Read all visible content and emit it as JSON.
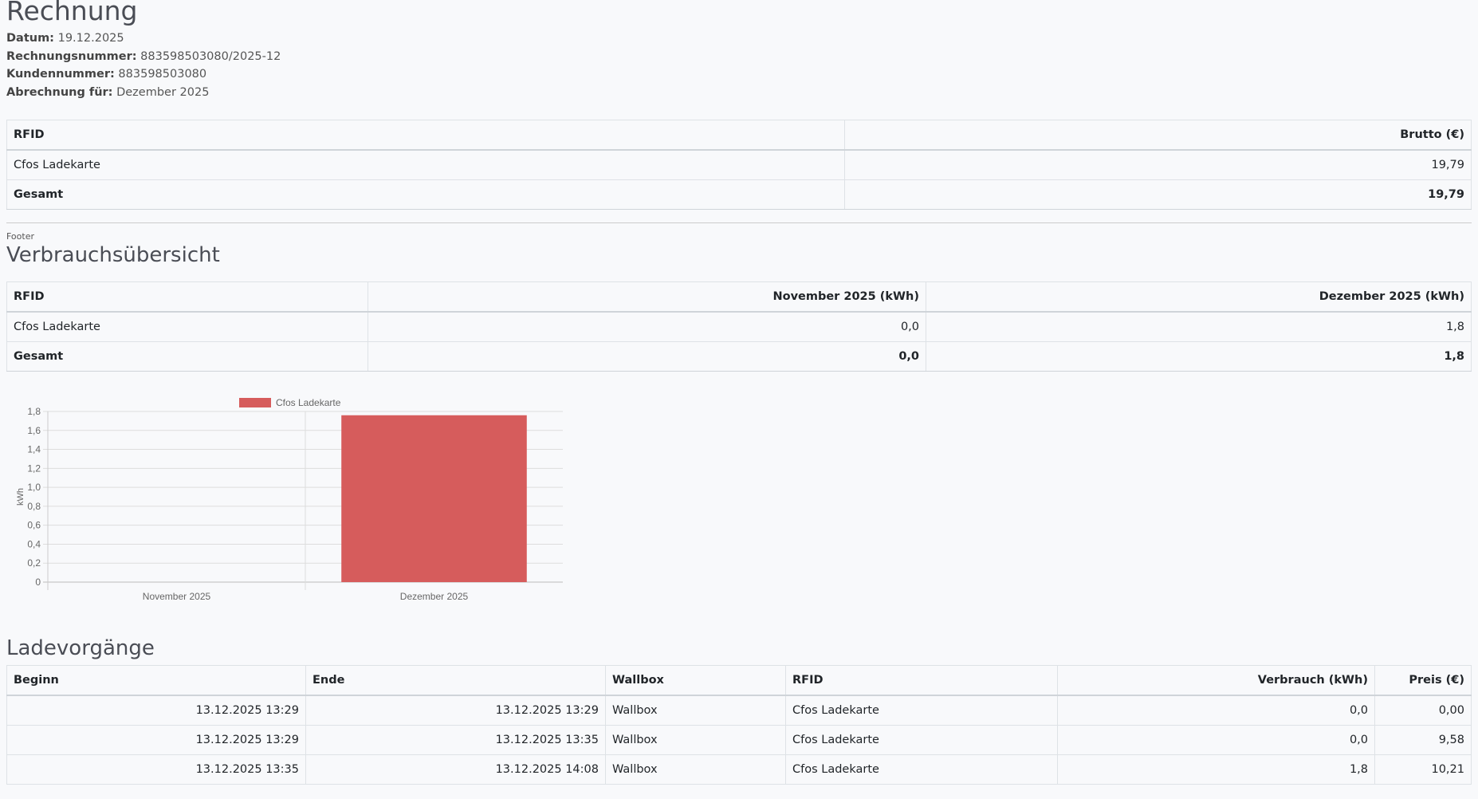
{
  "invoice": {
    "title": "Rechnung",
    "fields": [
      {
        "label": "Datum:",
        "value": "19.12.2025"
      },
      {
        "label": "Rechnungsnummer:",
        "value": "883598503080/2025-12"
      },
      {
        "label": "Kundennummer:",
        "value": "883598503080"
      },
      {
        "label": "Abrechnung für:",
        "value": "Dezember 2025"
      }
    ]
  },
  "summary": {
    "headers": [
      "RFID",
      "Brutto (€)"
    ],
    "rows": [
      [
        "Cfos Ladekarte",
        "19,79"
      ]
    ],
    "total": [
      "Gesamt",
      "19,79"
    ]
  },
  "footer_label": "Footer",
  "usage": {
    "title": "Verbrauchsübersicht",
    "headers": [
      "RFID",
      "November 2025 (kWh)",
      "Dezember 2025 (kWh)"
    ],
    "rows": [
      [
        "Cfos Ladekarte",
        "0,0",
        "1,8"
      ]
    ],
    "total": [
      "Gesamt",
      "0,0",
      "1,8"
    ]
  },
  "chart_data": {
    "type": "bar",
    "categories": [
      "November 2025",
      "Dezember 2025"
    ],
    "series": [
      {
        "name": "Cfos Ladekarte",
        "values": [
          0,
          1.76
        ],
        "color": "#d65c5c"
      }
    ],
    "ylabel": "kWh",
    "ylim": [
      0,
      1.8
    ],
    "yticks": [
      "0",
      "0,2",
      "0,4",
      "0,6",
      "0,8",
      "1,0",
      "1,2",
      "1,4",
      "1,6",
      "1,8"
    ],
    "grid": true,
    "legend": "top"
  },
  "sessions": {
    "title": "Ladevorgänge",
    "headers": [
      "Beginn",
      "Ende",
      "Wallbox",
      "RFID",
      "Verbrauch (kWh)",
      "Preis (€)"
    ],
    "rows": [
      [
        "13.12.2025 13:29",
        "13.12.2025 13:29",
        "Wallbox",
        "Cfos Ladekarte",
        "0,0",
        "0,00"
      ],
      [
        "13.12.2025 13:29",
        "13.12.2025 13:35",
        "Wallbox",
        "Cfos Ladekarte",
        "0,0",
        "9,58"
      ],
      [
        "13.12.2025 13:35",
        "13.12.2025 14:08",
        "Wallbox",
        "Cfos Ladekarte",
        "1,8",
        "10,21"
      ]
    ]
  }
}
